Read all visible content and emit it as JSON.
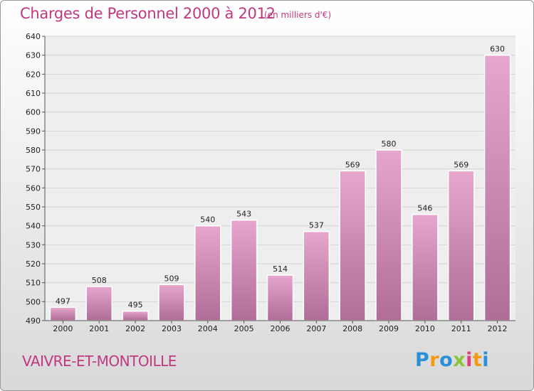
{
  "header": {
    "title": "Charges de Personnel 2000 à 2012",
    "subtitle": "(en milliers d'€)"
  },
  "footer": {
    "commune": "VAIVRE-ET-MONTOILLE",
    "logo": {
      "letters": [
        "P",
        "r",
        "o",
        "x",
        "i",
        "t",
        "i"
      ],
      "colors": [
        "#2a8fd6",
        "#f29b12",
        "#2a8fd6",
        "#8ac43f",
        "#e23d7a",
        "#f29b12",
        "#2a8fd6"
      ]
    }
  },
  "colors": {
    "accent": "#c0397f",
    "bar_top": "#e6a6cd",
    "bar_bottom": "#b06d97",
    "grid": "#d4d4d4"
  },
  "chart_data": {
    "type": "bar",
    "categories": [
      "2000",
      "2001",
      "2002",
      "2003",
      "2004",
      "2005",
      "2006",
      "2007",
      "2008",
      "2009",
      "2010",
      "2011",
      "2012"
    ],
    "values": [
      497,
      508,
      495,
      509,
      540,
      543,
      514,
      537,
      569,
      580,
      546,
      569,
      630
    ],
    "title": "Charges de Personnel 2000 à 2012",
    "subtitle": "(en milliers d'€)",
    "ylim": [
      490,
      640
    ],
    "yticks": [
      490,
      500,
      510,
      520,
      530,
      540,
      550,
      560,
      570,
      580,
      590,
      600,
      610,
      620,
      630,
      640
    ],
    "grid": true,
    "data_labels": true
  }
}
